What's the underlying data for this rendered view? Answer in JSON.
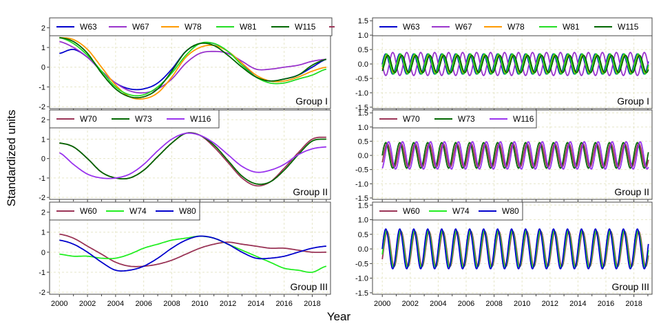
{
  "figure": {
    "xlabel": "Year",
    "ylabel": "Standardized units"
  },
  "colors": {
    "W63": "#0000cc",
    "W67": "#9933cc",
    "W78": "#ff9900",
    "W81": "#22dd22",
    "W115": "#006600",
    "W70": "#993355",
    "W73": "#006600",
    "W116": "#9933ee",
    "W60": "#993355",
    "W74": "#22ee22",
    "W80": "#0000cc"
  },
  "chart_data": [
    {
      "type": "line",
      "panel": "left-1",
      "group_label": "Group I",
      "legend": [
        "W63",
        "W67",
        "W78",
        "W81",
        "W115"
      ],
      "ylim": [
        -2.1,
        2.5
      ],
      "yticks": [
        -2,
        -1,
        0,
        1,
        2
      ],
      "xlim": [
        1999.3,
        2019.3
      ],
      "xticks": [
        "2000",
        "2002",
        "2004",
        "2006",
        "2008",
        "2010",
        "2012",
        "2014",
        "2016",
        "2018"
      ],
      "grid": true,
      "series": [
        {
          "name": "W63",
          "x": [
            2000,
            2001,
            2002,
            2003,
            2004,
            2005,
            2006,
            2007,
            2008,
            2009,
            2010,
            2011,
            2012,
            2013,
            2014,
            2015,
            2016,
            2017,
            2018,
            2019
          ],
          "values": [
            0.7,
            0.9,
            0.5,
            -0.2,
            -0.8,
            -1.1,
            -1.1,
            -0.8,
            -0.1,
            0.8,
            1.2,
            1.2,
            0.8,
            0.2,
            -0.5,
            -0.7,
            -0.6,
            -0.4,
            0.0,
            0.4
          ]
        },
        {
          "name": "W67",
          "x": [
            2000,
            2001,
            2002,
            2003,
            2004,
            2005,
            2006,
            2007,
            2008,
            2009,
            2010,
            2011,
            2012,
            2013,
            2014,
            2015,
            2016,
            2017,
            2018,
            2019
          ],
          "values": [
            1.3,
            1.0,
            0.5,
            -0.2,
            -0.8,
            -1.2,
            -1.3,
            -1.1,
            -0.6,
            0.2,
            0.7,
            0.8,
            0.7,
            0.3,
            -0.1,
            -0.1,
            0.0,
            0.1,
            0.3,
            0.4
          ]
        },
        {
          "name": "W78",
          "x": [
            2000,
            2001,
            2002,
            2003,
            2004,
            2005,
            2006,
            2007,
            2008,
            2009,
            2010,
            2011,
            2012,
            2013,
            2014,
            2015,
            2016,
            2017,
            2018,
            2019
          ],
          "values": [
            1.5,
            1.4,
            0.9,
            0.0,
            -0.9,
            -1.5,
            -1.6,
            -1.3,
            -0.5,
            0.5,
            1.0,
            1.1,
            0.8,
            0.2,
            -0.4,
            -0.7,
            -0.7,
            -0.5,
            -0.2,
            0.0
          ]
        },
        {
          "name": "W81",
          "x": [
            2000,
            2001,
            2002,
            2003,
            2004,
            2005,
            2006,
            2007,
            2008,
            2009,
            2010,
            2011,
            2012,
            2013,
            2014,
            2015,
            2016,
            2017,
            2018,
            2019
          ],
          "values": [
            1.5,
            1.2,
            0.6,
            -0.2,
            -1.0,
            -1.4,
            -1.4,
            -1.0,
            -0.3,
            0.6,
            1.2,
            1.2,
            0.8,
            0.1,
            -0.5,
            -0.8,
            -0.8,
            -0.6,
            -0.4,
            -0.1
          ]
        },
        {
          "name": "W115",
          "x": [
            2000,
            2001,
            2002,
            2003,
            2004,
            2005,
            2006,
            2007,
            2008,
            2009,
            2010,
            2011,
            2012,
            2013,
            2014,
            2015,
            2016,
            2017,
            2018,
            2019
          ],
          "values": [
            1.5,
            1.3,
            0.7,
            -0.3,
            -1.1,
            -1.5,
            -1.5,
            -1.1,
            -0.2,
            0.8,
            1.2,
            1.1,
            0.6,
            0.0,
            -0.5,
            -0.7,
            -0.6,
            -0.4,
            0.1,
            0.4
          ]
        }
      ]
    },
    {
      "type": "line",
      "panel": "left-2",
      "group_label": "Group II",
      "legend": [
        "W70",
        "W73",
        "W116"
      ],
      "ylim": [
        -2.1,
        2.5
      ],
      "yticks": [
        -2,
        -1,
        0,
        1,
        2
      ],
      "xlim": [
        1999.3,
        2019.3
      ],
      "xticks": [
        "2000",
        "2002",
        "2004",
        "2006",
        "2008",
        "2010",
        "2012",
        "2014",
        "2016",
        "2018"
      ],
      "grid": true,
      "series": [
        {
          "name": "W70",
          "x": [
            2000,
            2001,
            2002,
            2003,
            2004,
            2005,
            2006,
            2007,
            2008,
            2009,
            2010,
            2011,
            2012,
            2013,
            2014,
            2015,
            2016,
            2017,
            2018,
            2019
          ],
          "values": [
            0.8,
            0.6,
            0.0,
            -0.7,
            -1.0,
            -1.0,
            -0.6,
            0.1,
            0.8,
            1.3,
            1.2,
            0.6,
            -0.2,
            -1.0,
            -1.4,
            -1.2,
            -0.5,
            0.3,
            1.0,
            1.1
          ]
        },
        {
          "name": "W73",
          "x": [
            2000,
            2001,
            2002,
            2003,
            2004,
            2005,
            2006,
            2007,
            2008,
            2009,
            2010,
            2011,
            2012,
            2013,
            2014,
            2015,
            2016,
            2017,
            2018,
            2019
          ],
          "values": [
            0.8,
            0.6,
            0.0,
            -0.7,
            -1.0,
            -1.0,
            -0.6,
            0.1,
            0.8,
            1.3,
            1.2,
            0.7,
            -0.1,
            -0.9,
            -1.3,
            -1.2,
            -0.6,
            0.2,
            0.9,
            1.0
          ]
        },
        {
          "name": "W116",
          "x": [
            2000,
            2001,
            2002,
            2003,
            2004,
            2005,
            2006,
            2007,
            2008,
            2009,
            2010,
            2011,
            2012,
            2013,
            2014,
            2015,
            2016,
            2017,
            2018,
            2019
          ],
          "values": [
            0.3,
            -0.3,
            -0.8,
            -1.0,
            -1.0,
            -0.8,
            -0.3,
            0.4,
            1.0,
            1.3,
            1.2,
            0.8,
            0.2,
            -0.4,
            -0.7,
            -0.6,
            -0.3,
            0.2,
            0.5,
            0.6
          ]
        }
      ]
    },
    {
      "type": "line",
      "panel": "left-3",
      "group_label": "Group III",
      "legend": [
        "W60",
        "W74",
        "W80"
      ],
      "ylim": [
        -2.1,
        2.5
      ],
      "yticks": [
        -2,
        -1,
        0,
        1,
        2
      ],
      "xlim": [
        1999.3,
        2019.3
      ],
      "xticks": [
        "2000",
        "2002",
        "2004",
        "2006",
        "2008",
        "2010",
        "2012",
        "2014",
        "2016",
        "2018"
      ],
      "grid": true,
      "series": [
        {
          "name": "W60",
          "x": [
            2000,
            2001,
            2002,
            2003,
            2004,
            2005,
            2006,
            2007,
            2008,
            2009,
            2010,
            2011,
            2012,
            2013,
            2014,
            2015,
            2016,
            2017,
            2018,
            2019
          ],
          "values": [
            0.9,
            0.7,
            0.3,
            -0.1,
            -0.5,
            -0.7,
            -0.7,
            -0.6,
            -0.4,
            -0.1,
            0.2,
            0.4,
            0.5,
            0.4,
            0.3,
            0.2,
            0.2,
            0.1,
            0.0,
            0.0
          ]
        },
        {
          "name": "W74",
          "x": [
            2000,
            2001,
            2002,
            2003,
            2004,
            2005,
            2006,
            2007,
            2008,
            2009,
            2010,
            2011,
            2012,
            2013,
            2014,
            2015,
            2016,
            2017,
            2018,
            2019
          ],
          "values": [
            -0.1,
            -0.2,
            -0.2,
            -0.3,
            -0.3,
            -0.1,
            0.2,
            0.4,
            0.6,
            0.7,
            0.8,
            0.7,
            0.4,
            0.1,
            -0.2,
            -0.5,
            -0.8,
            -0.9,
            -1.0,
            -0.7
          ]
        },
        {
          "name": "W80",
          "x": [
            2000,
            2001,
            2002,
            2003,
            2004,
            2005,
            2006,
            2007,
            2008,
            2009,
            2010,
            2011,
            2012,
            2013,
            2014,
            2015,
            2016,
            2017,
            2018,
            2019
          ],
          "values": [
            0.6,
            0.4,
            0.0,
            -0.5,
            -0.9,
            -0.9,
            -0.7,
            -0.3,
            0.2,
            0.6,
            0.8,
            0.7,
            0.4,
            0.0,
            -0.3,
            -0.3,
            -0.2,
            0.0,
            0.2,
            0.3
          ]
        }
      ]
    },
    {
      "type": "line",
      "panel": "right-1",
      "group_label": "Group I",
      "legend": [
        "W63",
        "W67",
        "W78",
        "W81",
        "W115"
      ],
      "ylim": [
        -1.55,
        1.6
      ],
      "yticks": [
        -1.5,
        -1.0,
        -0.5,
        0.0,
        0.5,
        1.0,
        1.5
      ],
      "xlim": [
        1999.3,
        2019.3
      ],
      "xticks": [
        "2000",
        "2002",
        "2004",
        "2006",
        "2008",
        "2010",
        "2012",
        "2014",
        "2016",
        "2018"
      ],
      "grid": true,
      "description": "seasonal component, ~1 cycle per year",
      "series": [
        {
          "name": "W63",
          "amplitude": 0.35,
          "period": 1.0,
          "phase": 0.0
        },
        {
          "name": "W67",
          "amplitude": 0.4,
          "period": 1.0,
          "phase": 0.5
        },
        {
          "name": "W78",
          "amplitude": 0.3,
          "period": 1.0,
          "phase": 0.1
        },
        {
          "name": "W81",
          "amplitude": 0.35,
          "period": 1.0,
          "phase": 0.05
        },
        {
          "name": "W115",
          "amplitude": 0.3,
          "period": 1.0,
          "phase": 0.15
        }
      ]
    },
    {
      "type": "line",
      "panel": "right-2",
      "group_label": "Group II",
      "legend": [
        "W70",
        "W73",
        "W116"
      ],
      "ylim": [
        -1.55,
        1.6
      ],
      "yticks": [
        -1.5,
        -1.0,
        -0.5,
        0.0,
        0.5,
        1.0,
        1.5
      ],
      "xlim": [
        1999.3,
        2019.3
      ],
      "xticks": [
        "2000",
        "2002",
        "2004",
        "2006",
        "2008",
        "2010",
        "2012",
        "2014",
        "2016",
        "2018"
      ],
      "grid": true,
      "series": [
        {
          "name": "W70",
          "amplitude": 0.42,
          "period": 1.0,
          "phase": 0.1
        },
        {
          "name": "W73",
          "amplitude": 0.45,
          "period": 1.0,
          "phase": 0.0
        },
        {
          "name": "W116",
          "amplitude": 0.48,
          "period": 1.0,
          "phase": 0.2
        }
      ]
    },
    {
      "type": "line",
      "panel": "right-3",
      "group_label": "Group III",
      "legend": [
        "W60",
        "W74",
        "W80"
      ],
      "ylim": [
        -1.55,
        1.6
      ],
      "yticks": [
        -1.5,
        -1.0,
        -0.5,
        0.0,
        0.5,
        1.0,
        1.5
      ],
      "xlim": [
        1999.3,
        2019.3
      ],
      "xticks": [
        "2000",
        "2002",
        "2004",
        "2006",
        "2008",
        "2010",
        "2012",
        "2014",
        "2016",
        "2018"
      ],
      "grid": true,
      "series": [
        {
          "name": "W60",
          "amplitude": 0.6,
          "period": 1.0,
          "phase": 0.1
        },
        {
          "name": "W74",
          "amplitude": 0.62,
          "period": 1.0,
          "phase": 0.05
        },
        {
          "name": "W80",
          "amplitude": 0.68,
          "period": 1.0,
          "phase": 0.0
        }
      ]
    }
  ]
}
